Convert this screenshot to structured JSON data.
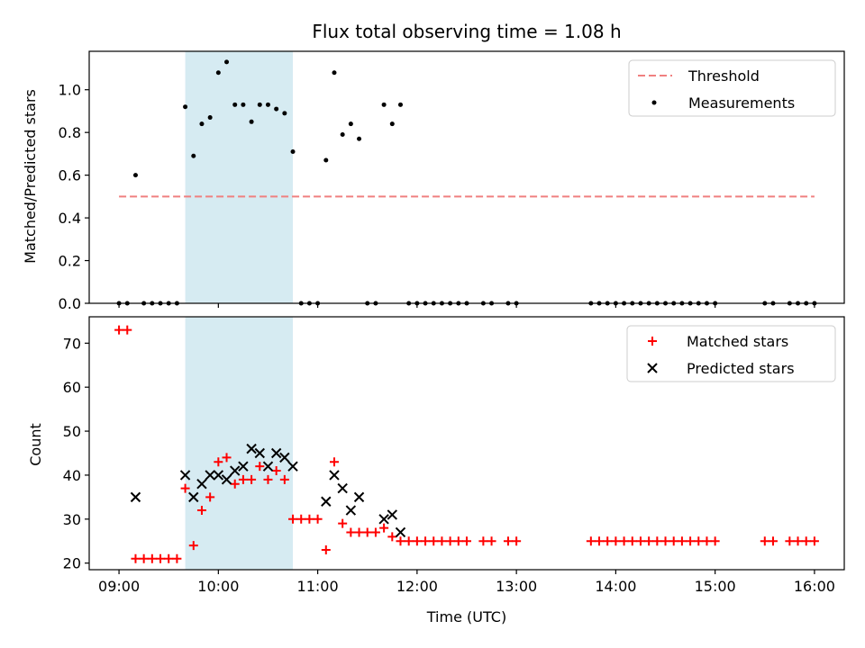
{
  "chart_data": [
    {
      "type": "scatter",
      "title": "Flux total observing time = 1.08 h",
      "ylabel": "Matched/Predicted stars",
      "xlabel": "",
      "ylim": [
        0,
        1.18
      ],
      "yticks": [
        "0.0",
        "0.2",
        "0.4",
        "0.6",
        "0.8",
        "1.0"
      ],
      "xlim": [
        "08:42",
        "16:18"
      ],
      "xticks": [
        "09:00",
        "10:00",
        "11:00",
        "12:00",
        "13:00",
        "14:00",
        "15:00",
        "16:00"
      ],
      "shaded_span": {
        "start": "09:40",
        "end": "10:45",
        "color": "#add8e6"
      },
      "legend": {
        "position": "top-right",
        "entries": [
          "Threshold",
          "Measurements"
        ]
      },
      "threshold": {
        "name": "Threshold",
        "y": 0.5,
        "x_from": "09:00",
        "x_to": "16:00",
        "color": "#f08080"
      },
      "series": [
        {
          "name": "Measurements",
          "color": "#000000",
          "points": [
            [
              "09:00",
              0
            ],
            [
              "09:05",
              0
            ],
            [
              "09:10",
              0.6
            ],
            [
              "09:15",
              0
            ],
            [
              "09:20",
              0
            ],
            [
              "09:25",
              0
            ],
            [
              "09:30",
              0
            ],
            [
              "09:35",
              0
            ],
            [
              "09:40",
              0.92
            ],
            [
              "09:45",
              0.69
            ],
            [
              "09:50",
              0.84
            ],
            [
              "09:55",
              0.87
            ],
            [
              "10:00",
              1.08
            ],
            [
              "10:05",
              1.13
            ],
            [
              "10:10",
              0.93
            ],
            [
              "10:15",
              0.93
            ],
            [
              "10:20",
              0.85
            ],
            [
              "10:25",
              0.93
            ],
            [
              "10:30",
              0.93
            ],
            [
              "10:35",
              0.91
            ],
            [
              "10:40",
              0.89
            ],
            [
              "10:45",
              0.71
            ],
            [
              "10:50",
              0
            ],
            [
              "10:55",
              0
            ],
            [
              "11:00",
              0
            ],
            [
              "11:05",
              0.67
            ],
            [
              "11:10",
              1.08
            ],
            [
              "11:15",
              0.79
            ],
            [
              "11:20",
              0.84
            ],
            [
              "11:25",
              0.77
            ],
            [
              "11:30",
              0
            ],
            [
              "11:35",
              0
            ],
            [
              "11:40",
              0.93
            ],
            [
              "11:45",
              0.84
            ],
            [
              "11:50",
              0.93
            ],
            [
              "11:55",
              0
            ],
            [
              "12:00",
              0
            ],
            [
              "12:05",
              0
            ],
            [
              "12:10",
              0
            ],
            [
              "12:15",
              0
            ],
            [
              "12:20",
              0
            ],
            [
              "12:25",
              0
            ],
            [
              "12:30",
              0
            ],
            [
              "12:40",
              0
            ],
            [
              "12:45",
              0
            ],
            [
              "12:55",
              0
            ],
            [
              "13:00",
              0
            ],
            [
              "13:45",
              0
            ],
            [
              "13:50",
              0
            ],
            [
              "13:55",
              0
            ],
            [
              "14:00",
              0
            ],
            [
              "14:05",
              0
            ],
            [
              "14:10",
              0
            ],
            [
              "14:15",
              0
            ],
            [
              "14:20",
              0
            ],
            [
              "14:25",
              0
            ],
            [
              "14:30",
              0
            ],
            [
              "14:35",
              0
            ],
            [
              "14:40",
              0
            ],
            [
              "14:45",
              0
            ],
            [
              "14:50",
              0
            ],
            [
              "14:55",
              0
            ],
            [
              "15:00",
              0
            ],
            [
              "15:30",
              0
            ],
            [
              "15:35",
              0
            ],
            [
              "15:45",
              0
            ],
            [
              "15:50",
              0
            ],
            [
              "15:55",
              0
            ],
            [
              "16:00",
              0
            ]
          ]
        }
      ]
    },
    {
      "type": "scatter",
      "title": "",
      "ylabel": "Count",
      "xlabel": "Time (UTC)",
      "ylim": [
        18.5,
        76
      ],
      "yticks": [
        "20",
        "30",
        "40",
        "50",
        "60",
        "70"
      ],
      "xlim": [
        "08:42",
        "16:18"
      ],
      "xticks": [
        "09:00",
        "10:00",
        "11:00",
        "12:00",
        "13:00",
        "14:00",
        "15:00",
        "16:00"
      ],
      "shaded_span": {
        "start": "09:40",
        "end": "10:45",
        "color": "#add8e6"
      },
      "legend": {
        "position": "top-right",
        "entries": [
          "Matched stars",
          "Predicted stars"
        ]
      },
      "series": [
        {
          "name": "Matched stars",
          "color": "#ff0000",
          "marker": "plus",
          "points": [
            [
              "09:00",
              73
            ],
            [
              "09:05",
              73
            ],
            [
              "09:10",
              21
            ],
            [
              "09:15",
              21
            ],
            [
              "09:20",
              21
            ],
            [
              "09:25",
              21
            ],
            [
              "09:30",
              21
            ],
            [
              "09:35",
              21
            ],
            [
              "09:40",
              37
            ],
            [
              "09:45",
              24
            ],
            [
              "09:50",
              32
            ],
            [
              "09:55",
              35
            ],
            [
              "10:00",
              43
            ],
            [
              "10:05",
              44
            ],
            [
              "10:10",
              38
            ],
            [
              "10:15",
              39
            ],
            [
              "10:20",
              39
            ],
            [
              "10:25",
              42
            ],
            [
              "10:30",
              39
            ],
            [
              "10:35",
              41
            ],
            [
              "10:40",
              39
            ],
            [
              "10:45",
              30
            ],
            [
              "10:50",
              30
            ],
            [
              "10:55",
              30
            ],
            [
              "11:00",
              30
            ],
            [
              "11:05",
              23
            ],
            [
              "11:10",
              43
            ],
            [
              "11:15",
              29
            ],
            [
              "11:20",
              27
            ],
            [
              "11:25",
              27
            ],
            [
              "11:30",
              27
            ],
            [
              "11:35",
              27
            ],
            [
              "11:40",
              28
            ],
            [
              "11:45",
              26
            ],
            [
              "11:50",
              25
            ],
            [
              "11:55",
              25
            ],
            [
              "12:00",
              25
            ],
            [
              "12:05",
              25
            ],
            [
              "12:10",
              25
            ],
            [
              "12:15",
              25
            ],
            [
              "12:20",
              25
            ],
            [
              "12:25",
              25
            ],
            [
              "12:30",
              25
            ],
            [
              "12:40",
              25
            ],
            [
              "12:45",
              25
            ],
            [
              "12:55",
              25
            ],
            [
              "13:00",
              25
            ],
            [
              "13:45",
              25
            ],
            [
              "13:50",
              25
            ],
            [
              "13:55",
              25
            ],
            [
              "14:00",
              25
            ],
            [
              "14:05",
              25
            ],
            [
              "14:10",
              25
            ],
            [
              "14:15",
              25
            ],
            [
              "14:20",
              25
            ],
            [
              "14:25",
              25
            ],
            [
              "14:30",
              25
            ],
            [
              "14:35",
              25
            ],
            [
              "14:40",
              25
            ],
            [
              "14:45",
              25
            ],
            [
              "14:50",
              25
            ],
            [
              "14:55",
              25
            ],
            [
              "15:00",
              25
            ],
            [
              "15:30",
              25
            ],
            [
              "15:35",
              25
            ],
            [
              "15:45",
              25
            ],
            [
              "15:50",
              25
            ],
            [
              "15:55",
              25
            ],
            [
              "16:00",
              25
            ]
          ]
        },
        {
          "name": "Predicted stars",
          "color": "#000000",
          "marker": "x",
          "points": [
            [
              "09:10",
              35
            ],
            [
              "09:40",
              40
            ],
            [
              "09:45",
              35
            ],
            [
              "09:50",
              38
            ],
            [
              "09:55",
              40
            ],
            [
              "10:00",
              40
            ],
            [
              "10:05",
              39
            ],
            [
              "10:10",
              41
            ],
            [
              "10:15",
              42
            ],
            [
              "10:20",
              46
            ],
            [
              "10:25",
              45
            ],
            [
              "10:30",
              42
            ],
            [
              "10:35",
              45
            ],
            [
              "10:40",
              44
            ],
            [
              "10:45",
              42
            ],
            [
              "11:05",
              34
            ],
            [
              "11:10",
              40
            ],
            [
              "11:15",
              37
            ],
            [
              "11:20",
              32
            ],
            [
              "11:25",
              35
            ],
            [
              "11:40",
              30
            ],
            [
              "11:45",
              31
            ],
            [
              "11:50",
              27
            ]
          ]
        }
      ]
    }
  ]
}
